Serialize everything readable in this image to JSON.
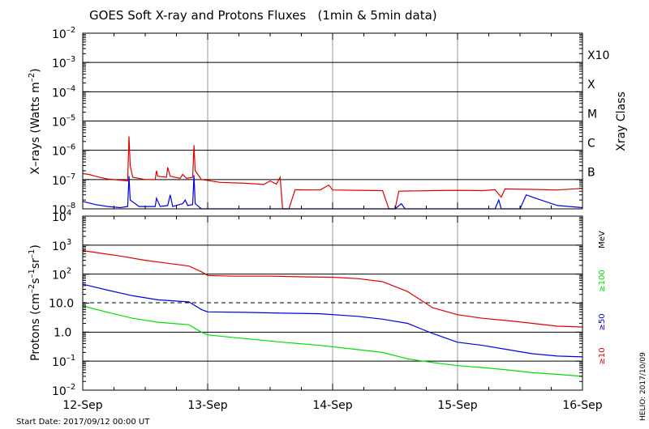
{
  "chart_data": {
    "type": "line",
    "title": "GOES Soft X-ray and Protons Fluxes   (1min & 5min data)",
    "x_tick_labels": [
      "12-Sep",
      "13-Sep",
      "14-Sep",
      "15-Sep",
      "16-Sep"
    ],
    "x_range": [
      "2017-09-12T00:00",
      "2017-09-16T00:00"
    ],
    "start_date": "Start Date: 2017/09/12 00:00 UT",
    "footer": "HELIO: 2017/10/09",
    "grid": "on",
    "panels": [
      {
        "id": "xrays",
        "ylabel_main": "X–rays (Watts m",
        "ylabel_exp": "–2",
        "ylabel_close": ")",
        "yscale": "log",
        "ylim": [
          1e-08,
          0.01
        ],
        "y_tick_exponents": [
          "–2",
          "–3",
          "–4",
          "–5",
          "–6",
          "–7",
          "–8"
        ],
        "y_tick_base": "10",
        "right_axis_title": "Xray Class",
        "right_labels": [
          "X10",
          "X",
          "M",
          "C",
          "B"
        ],
        "series": [
          {
            "color": "#e00000",
            "points": [
              [
                0,
                1.6e-07
              ],
              [
                0.05,
                1.5e-07
              ],
              [
                0.1,
                1.3e-07
              ],
              [
                0.15,
                1.15e-07
              ],
              [
                0.2,
                1.05e-07
              ],
              [
                0.3,
                9.5e-08
              ],
              [
                0.36,
                9e-08
              ],
              [
                0.37,
                3e-06
              ],
              [
                0.38,
                3e-07
              ],
              [
                0.4,
                1.2e-07
              ],
              [
                0.5,
                1e-07
              ],
              [
                0.58,
                1e-07
              ],
              [
                0.59,
                2e-07
              ],
              [
                0.6,
                1.3e-07
              ],
              [
                0.67,
                1.2e-07
              ],
              [
                0.68,
                2.6e-07
              ],
              [
                0.7,
                1.3e-07
              ],
              [
                0.78,
                1.1e-07
              ],
              [
                0.8,
                1.5e-07
              ],
              [
                0.83,
                1.1e-07
              ],
              [
                0.88,
                1.2e-07
              ],
              [
                0.89,
                1.5e-06
              ],
              [
                0.9,
                2e-07
              ],
              [
                0.95,
                1e-07
              ],
              [
                1.1,
                8e-08
              ],
              [
                1.3,
                7.5e-08
              ],
              [
                1.45,
                6.8e-08
              ],
              [
                1.5,
                9e-08
              ],
              [
                1.55,
                7e-08
              ],
              [
                1.58,
                1.2e-07
              ],
              [
                1.6,
                1e-08
              ],
              [
                1.65,
                1e-08
              ],
              [
                1.7,
                4.5e-08
              ],
              [
                1.9,
                4.4e-08
              ],
              [
                1.97,
                6.5e-08
              ],
              [
                2.0,
                4.4e-08
              ],
              [
                2.2,
                4.3e-08
              ],
              [
                2.4,
                4.2e-08
              ],
              [
                2.45,
                1e-08
              ],
              [
                2.5,
                1e-08
              ],
              [
                2.53,
                4e-08
              ],
              [
                2.8,
                4.2e-08
              ],
              [
                3.0,
                4.3e-08
              ],
              [
                3.2,
                4.2e-08
              ],
              [
                3.3,
                4.5e-08
              ],
              [
                3.35,
                2.5e-08
              ],
              [
                3.38,
                4.8e-08
              ],
              [
                3.6,
                4.6e-08
              ],
              [
                3.8,
                4.4e-08
              ],
              [
                4.0,
                5e-08
              ]
            ]
          },
          {
            "color": "#0000e0",
            "points": [
              [
                0,
                1.8e-08
              ],
              [
                0.1,
                1.4e-08
              ],
              [
                0.2,
                1.2e-08
              ],
              [
                0.3,
                1.1e-08
              ],
              [
                0.36,
                1.2e-08
              ],
              [
                0.37,
                1.3e-07
              ],
              [
                0.38,
                2e-08
              ],
              [
                0.45,
                1.2e-08
              ],
              [
                0.58,
                1.2e-08
              ],
              [
                0.59,
                2.3e-08
              ],
              [
                0.62,
                1.2e-08
              ],
              [
                0.68,
                1.3e-08
              ],
              [
                0.7,
                3e-08
              ],
              [
                0.72,
                1.2e-08
              ],
              [
                0.8,
                1.5e-08
              ],
              [
                0.82,
                2e-08
              ],
              [
                0.84,
                1.3e-08
              ],
              [
                0.88,
                1.4e-08
              ],
              [
                0.89,
                1.4e-07
              ],
              [
                0.9,
                1.5e-08
              ],
              [
                0.95,
                1e-08
              ],
              [
                1.0,
                1e-08
              ],
              [
                2.5,
                1e-08
              ],
              [
                2.55,
                1.5e-08
              ],
              [
                2.58,
                1e-08
              ],
              [
                3.3,
                1e-08
              ],
              [
                3.33,
                2e-08
              ],
              [
                3.35,
                1e-08
              ],
              [
                3.5,
                1e-08
              ],
              [
                3.55,
                3e-08
              ],
              [
                3.6,
                2.5e-08
              ],
              [
                3.7,
                1.8e-08
              ],
              [
                3.8,
                1.3e-08
              ],
              [
                4.0,
                1.1e-08
              ]
            ]
          }
        ]
      },
      {
        "id": "protons",
        "ylabel_main": "Protons (cm",
        "ylabel_exp1": "–2",
        "ylabel_mid": "s",
        "ylabel_exp2": "–1",
        "ylabel_mid2": "sr",
        "ylabel_exp3": "–1",
        "ylabel_close": ")",
        "yscale": "log",
        "ylim": [
          0.01,
          10000
        ],
        "y_tick_labels_plain": [
          "10.0",
          "1.0"
        ],
        "y_tick_base": "10",
        "y_tick_exponents": [
          "4",
          "3",
          "2",
          "1",
          "–1",
          "–2"
        ],
        "threshold": 10,
        "right_unit": "MeV",
        "series": [
          {
            "name": "≥10",
            "color": "#e00000",
            "points": [
              [
                0,
                650
              ],
              [
                0.1,
                560
              ],
              [
                0.3,
                420
              ],
              [
                0.5,
                300
              ],
              [
                0.7,
                230
              ],
              [
                0.85,
                190
              ],
              [
                0.95,
                120
              ],
              [
                1.0,
                90
              ],
              [
                1.2,
                85
              ],
              [
                1.5,
                85
              ],
              [
                1.8,
                80
              ],
              [
                2.0,
                78
              ],
              [
                2.2,
                70
              ],
              [
                2.4,
                55
              ],
              [
                2.6,
                25
              ],
              [
                2.8,
                7
              ],
              [
                3.0,
                4
              ],
              [
                3.2,
                3
              ],
              [
                3.4,
                2.5
              ],
              [
                3.6,
                2
              ],
              [
                3.8,
                1.6
              ],
              [
                4.0,
                1.5
              ]
            ]
          },
          {
            "name": "≥50",
            "color": "#0000e0",
            "points": [
              [
                0,
                45
              ],
              [
                0.2,
                28
              ],
              [
                0.4,
                18
              ],
              [
                0.6,
                13
              ],
              [
                0.85,
                11
              ],
              [
                0.95,
                6
              ],
              [
                1.0,
                5
              ],
              [
                1.3,
                4.8
              ],
              [
                1.6,
                4.5
              ],
              [
                1.9,
                4.3
              ],
              [
                2.2,
                3.5
              ],
              [
                2.4,
                2.8
              ],
              [
                2.6,
                2
              ],
              [
                2.8,
                0.9
              ],
              [
                3.0,
                0.45
              ],
              [
                3.2,
                0.35
              ],
              [
                3.4,
                0.25
              ],
              [
                3.6,
                0.18
              ],
              [
                3.8,
                0.15
              ],
              [
                4.0,
                0.14
              ]
            ]
          },
          {
            "name": "≥100",
            "color": "#00e000",
            "points": [
              [
                0,
                8
              ],
              [
                0.2,
                4.8
              ],
              [
                0.4,
                3
              ],
              [
                0.6,
                2.2
              ],
              [
                0.85,
                1.8
              ],
              [
                0.95,
                1.0
              ],
              [
                1.0,
                0.8
              ],
              [
                1.3,
                0.6
              ],
              [
                1.6,
                0.45
              ],
              [
                1.9,
                0.35
              ],
              [
                2.2,
                0.25
              ],
              [
                2.4,
                0.2
              ],
              [
                2.6,
                0.12
              ],
              [
                2.8,
                0.09
              ],
              [
                3.0,
                0.07
              ],
              [
                3.2,
                0.06
              ],
              [
                3.4,
                0.05
              ],
              [
                3.6,
                0.04
              ],
              [
                3.8,
                0.035
              ],
              [
                4.0,
                0.03
              ]
            ]
          }
        ]
      }
    ]
  }
}
